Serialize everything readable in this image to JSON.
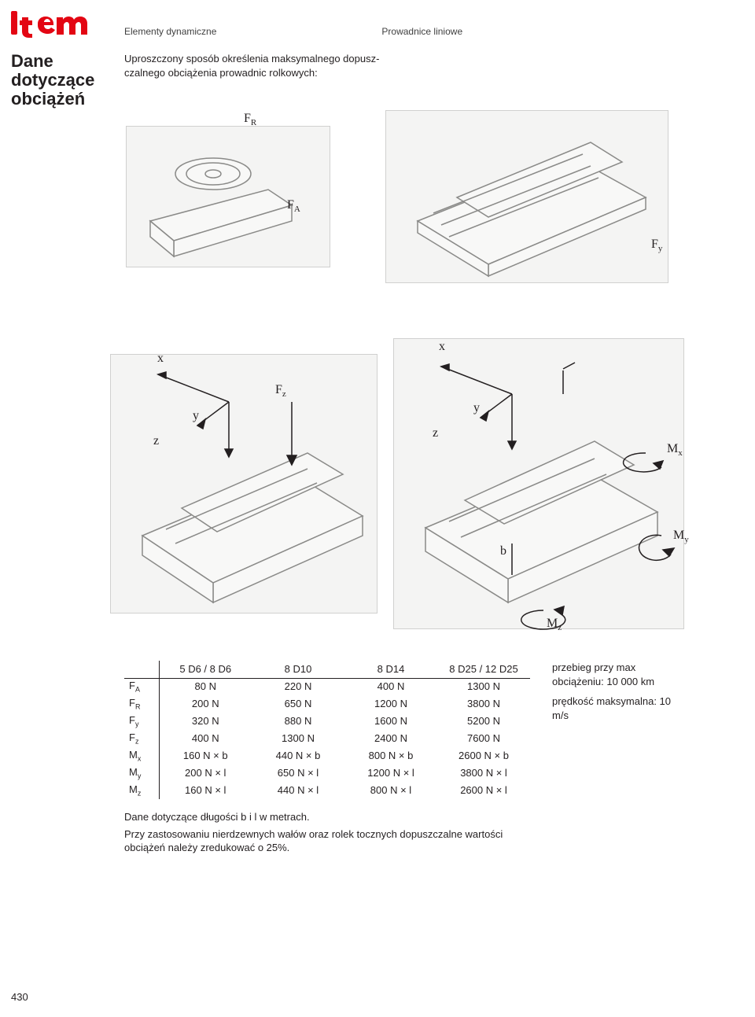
{
  "header": {
    "category1": "Elementy dynamiczne",
    "category2": "Prowadnice liniowe"
  },
  "title_line1": "Dane dotyczące",
  "title_line2": "obciążeń",
  "intro_line1": "Uproszczony sposób określenia maksymalnego dopusz-",
  "intro_line2": "czalnego obciążenia prowadnic rolkowych:",
  "diagram": {
    "labels": {
      "FR": "F",
      "FR_sub": "R",
      "FA": "F",
      "FA_sub": "A",
      "Fy": "F",
      "Fy_sub": "y",
      "Fz": "F",
      "Fz_sub": "z",
      "Mx": "M",
      "Mx_sub": "x",
      "My": "M",
      "My_sub": "y",
      "Mz": "M",
      "Mz_sub": "z",
      "x": "x",
      "y": "y",
      "z": "z",
      "b": "b"
    },
    "fill": "#f4f4f3",
    "stroke": "#8a8a88"
  },
  "table": {
    "type": "table",
    "columns": [
      "",
      "5 D6 / 8 D6",
      "8 D10",
      "8 D14",
      "8 D25 / 12 D25"
    ],
    "rows": [
      {
        "head": "F",
        "sub": "A",
        "cells": [
          "80 N",
          "220 N",
          "400 N",
          "1300 N"
        ]
      },
      {
        "head": "F",
        "sub": "R",
        "cells": [
          "200 N",
          "650 N",
          "1200 N",
          "3800 N"
        ]
      },
      {
        "head": "F",
        "sub": "y",
        "cells": [
          "320 N",
          "880 N",
          "1600 N",
          "5200 N"
        ]
      },
      {
        "head": "F",
        "sub": "z",
        "cells": [
          "400 N",
          "1300 N",
          "2400 N",
          "7600 N"
        ]
      },
      {
        "head": "M",
        "sub": "x",
        "cells": [
          "160 N × b",
          "440 N × b",
          "800 N × b",
          "2600 N × b"
        ]
      },
      {
        "head": "M",
        "sub": "y",
        "cells": [
          "200 N × l",
          "650 N × l",
          "1200 N × l",
          "3800 N × l"
        ]
      },
      {
        "head": "M",
        "sub": "z",
        "cells": [
          "160 N × l",
          "440 N × l",
          "800 N × l",
          "2600 N × l"
        ]
      }
    ],
    "border_color": "#231f20",
    "font_size": 13
  },
  "side_notes": {
    "p1": "przebieg przy max obciążeniu: 10 000 km",
    "p2": "prędkość maksymalna: 10 m/s"
  },
  "footnotes": {
    "p1": "Dane dotyczące długości b i l w metrach.",
    "p2": "Przy zastosowaniu nierdzewnych wałów oraz rolek tocznych dopuszczalne wartości obciążeń należy zredukować o 25%."
  },
  "page_number": "430",
  "colors": {
    "logo_red": "#e30613",
    "text": "#231f20",
    "bg": "#ffffff"
  }
}
